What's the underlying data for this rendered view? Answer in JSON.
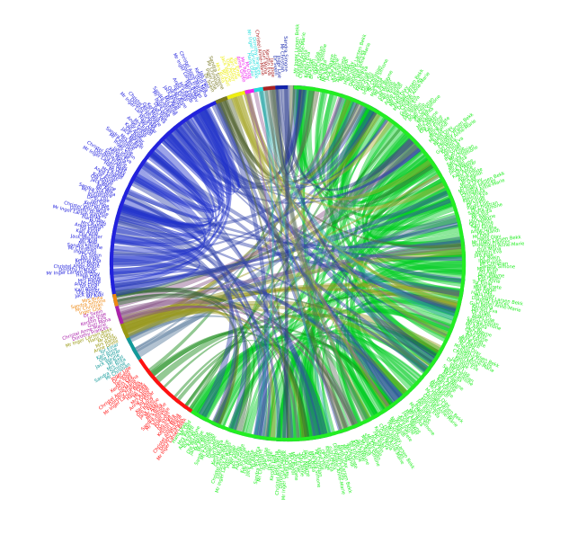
{
  "diagram": {
    "type": "chord",
    "grid": false,
    "background": "#ffffff",
    "ring_color": "#ffffff",
    "groups": [
      {
        "id": "green",
        "color": "#22ee22",
        "start_deg": 2,
        "end_deg": 213,
        "label_count": 260,
        "links": [
          {
            "to": "green",
            "color": "#00cc22",
            "count": 120
          }
        ]
      },
      {
        "id": "red",
        "color": "#ff1111",
        "start_deg": 213,
        "end_deg": 237,
        "label_count": 28,
        "links": [
          {
            "to": "green",
            "color": "#118811",
            "count": 10
          }
        ]
      },
      {
        "id": "teal",
        "color": "#119999",
        "start_deg": 237,
        "end_deg": 245,
        "label_count": 8,
        "links": [
          {
            "to": "green",
            "color": "#557799",
            "count": 6
          }
        ]
      },
      {
        "id": "olive",
        "color": "#999911",
        "start_deg": 245,
        "end_deg": 250,
        "label_count": 5,
        "links": [
          {
            "to": "green",
            "color": "#999922",
            "count": 14
          }
        ]
      },
      {
        "id": "purple",
        "color": "#aa22aa",
        "start_deg": 250,
        "end_deg": 256,
        "label_count": 6,
        "links": [
          {
            "to": "green",
            "color": "#885588",
            "count": 6
          }
        ]
      },
      {
        "id": "orange",
        "color": "#ee8811",
        "start_deg": 256,
        "end_deg": 260,
        "label_count": 4,
        "links": [
          {
            "to": "green",
            "color": "#336633",
            "count": 6
          }
        ]
      },
      {
        "id": "blue",
        "color": "#2222dd",
        "start_deg": 260,
        "end_deg": 336,
        "label_count": 95,
        "links": [
          {
            "to": "green",
            "color": "#3344aa",
            "count": 40
          },
          {
            "to": "blue",
            "color": "#2233cc",
            "count": 30
          }
        ]
      },
      {
        "id": "olive2",
        "color": "#777722",
        "start_deg": 336,
        "end_deg": 340,
        "label_count": 4,
        "links": [
          {
            "to": "green",
            "color": "#556633",
            "count": 6
          }
        ]
      },
      {
        "id": "yellow",
        "color": "#eeee11",
        "start_deg": 340,
        "end_deg": 346,
        "label_count": 6,
        "links": [
          {
            "to": "green",
            "color": "#aaaa33",
            "count": 8
          }
        ]
      },
      {
        "id": "magenta",
        "color": "#ee22ee",
        "start_deg": 346,
        "end_deg": 349,
        "label_count": 3,
        "links": [
          {
            "to": "green",
            "color": "#996699",
            "count": 4
          }
        ]
      },
      {
        "id": "cyan",
        "color": "#22dddd",
        "start_deg": 349,
        "end_deg": 352,
        "label_count": 3,
        "links": [
          {
            "to": "green",
            "color": "#33aaaa",
            "count": 4
          }
        ]
      },
      {
        "id": "darkred",
        "color": "#aa2222",
        "start_deg": 352,
        "end_deg": 356,
        "label_count": 4,
        "links": [
          {
            "to": "green",
            "color": "#667766",
            "count": 6
          }
        ]
      },
      {
        "id": "navy",
        "color": "#1122aa",
        "start_deg": 356,
        "end_deg": 360,
        "label_count": 4,
        "links": [
          {
            "to": "green",
            "color": "#223388",
            "count": 4
          }
        ]
      }
    ]
  },
  "labels": {
    "note": "",
    "visible": [
      "Mr Inger Larsen Bekk",
      "Dorothy Frances",
      "Christel Anne-Marie",
      "Guri Mona",
      "Kerstin Eva",
      "Jan Inge",
      "Dr Svein",
      "Inger Lise",
      "Mr Christian",
      "Sandra Simone",
      "Mrs Brita",
      "Mr Axel",
      "Jack Wayne",
      "Ole Petter",
      "Kari Anne",
      "Tor Einar",
      "Anne Grete",
      "Mrs Randi",
      "Mr Odd",
      "Hans Olav"
    ]
  }
}
